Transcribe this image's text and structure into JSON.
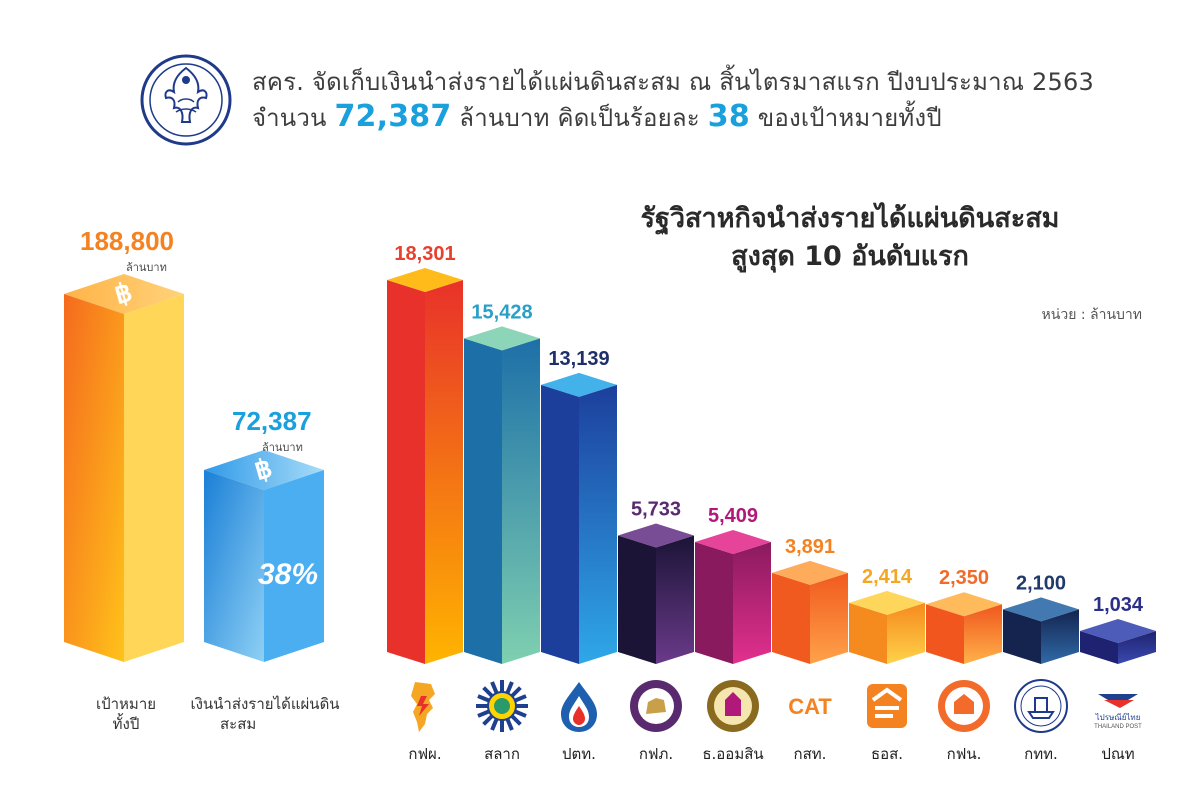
{
  "header": {
    "line1": "สคร. จัดเก็บเงินนำส่งรายได้แผ่นดินสะสม ณ สิ้นไตรมาสแรก ปีงบประมาณ 2563",
    "line2_a": "จำนวน",
    "line2_num1": "72,387",
    "line2_b": "ล้านบาท คิดเป็นร้อยละ",
    "line2_num2": "38",
    "line2_c": "ของเป้าหมายทั้งปี"
  },
  "summary": {
    "target": {
      "value": "188,800",
      "unit": "ล้านบาท",
      "label_line1": "เป้าหมาย",
      "label_line2": "ทั้งปี",
      "color": "#f58220"
    },
    "collected": {
      "value": "72,387",
      "unit": "ล้านบาท",
      "percent": "38%",
      "label_line1": "เงินนำส่งรายได้แผ่นดิน",
      "label_line2": "สะสม",
      "color": "#1aa0dc"
    }
  },
  "chart_title_line1": "รัฐวิสาหกิจนำส่งรายได้แผ่นดินสะสม",
  "chart_title_line2": "สูงสุด 10 อันดับแรก",
  "unit_label": "หน่วย : ล้านบาท",
  "chart_data": {
    "type": "bar",
    "categories": [
      "กฟผ.",
      "สลาก",
      "ปตท.",
      "กฟภ.",
      "ธ.ออมสิน",
      "กสท.",
      "ธอส.",
      "กฟน.",
      "กทท.",
      "ปณท"
    ],
    "values": [
      18301,
      15428,
      13139,
      5733,
      5409,
      3891,
      2414,
      2350,
      2100,
      1034
    ],
    "value_labels": [
      "18,301",
      "15,428",
      "13,139",
      "5,733",
      "5,409",
      "3,891",
      "2,414",
      "2,350",
      "2,100",
      "1,034"
    ],
    "label_colors": [
      "#e8402c",
      "#2aa0c8",
      "#1f2f6b",
      "#5a2a6e",
      "#b0197a",
      "#f58220",
      "#f5a623",
      "#f26b2a",
      "#1f3a6b",
      "#2c2f8a"
    ],
    "ylabel": "หน่วย : ล้านบาท"
  },
  "colors": {
    "bars": [
      [
        "#e8312a",
        "#ffb400"
      ],
      [
        "#1d6fa8",
        "#7fd0b0"
      ],
      [
        "#1c3f9c",
        "#2fa8e8"
      ],
      [
        "#1b1436",
        "#6a3a8a"
      ],
      [
        "#8a1a5e",
        "#e2308e"
      ],
      [
        "#f05a1e",
        "#ffa24a"
      ],
      [
        "#f58a1e",
        "#ffd24a"
      ],
      [
        "#f0561e",
        "#ffb24a"
      ],
      [
        "#14244f",
        "#2f6aa8"
      ],
      [
        "#1f2270",
        "#3a4ab0"
      ]
    ]
  },
  "logos": [
    "egat-map-logo",
    "lottery-logo",
    "ptt-logo",
    "pea-logo",
    "gsb-logo",
    "cat-logo",
    "ghb-logo",
    "mea-logo",
    "port-logo",
    "thailand-post-logo"
  ],
  "logo_text": {
    "cat": "CAT",
    "post_main": "ไปรษณีย์ไทย",
    "post_sub": "THAILAND POST"
  }
}
